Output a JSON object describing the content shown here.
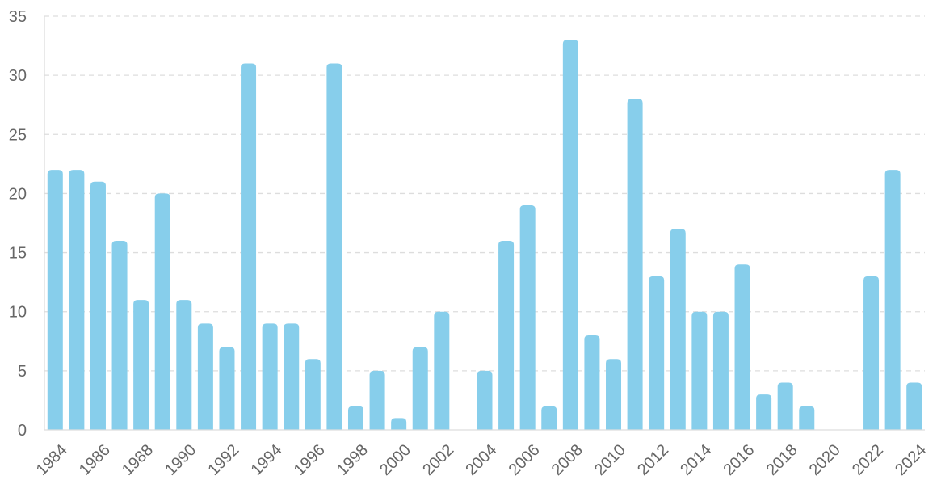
{
  "chart_data": {
    "type": "bar",
    "title": "",
    "xlabel": "",
    "ylabel": "",
    "ylim": [
      0,
      35
    ],
    "yticks": [
      0,
      5,
      10,
      15,
      20,
      25,
      30,
      35
    ],
    "grid": true,
    "bar_color": "#87ceeb",
    "categories": [
      "1984",
      "1985",
      "1986",
      "1987",
      "1988",
      "1989",
      "1990",
      "1991",
      "1992",
      "1993",
      "1994",
      "1995",
      "1996",
      "1997",
      "1998",
      "1999",
      "2000",
      "2001",
      "2002",
      "2003",
      "2004",
      "2005",
      "2006",
      "2007",
      "2008",
      "2009",
      "2010",
      "2011",
      "2012",
      "2013",
      "2014",
      "2015",
      "2016",
      "2017",
      "2018",
      "2019",
      "2020",
      "2021",
      "2022",
      "2023",
      "2024"
    ],
    "values": [
      22,
      22,
      21,
      16,
      11,
      20,
      11,
      9,
      7,
      31,
      9,
      9,
      6,
      31,
      2,
      5,
      1,
      7,
      10,
      0,
      5,
      16,
      19,
      2,
      33,
      8,
      6,
      28,
      13,
      17,
      10,
      10,
      14,
      3,
      4,
      2,
      0,
      0,
      13,
      22,
      4
    ],
    "x_tick_labels": [
      "1984",
      "1986",
      "1988",
      "1990",
      "1992",
      "1994",
      "1996",
      "1998",
      "2000",
      "2002",
      "2004",
      "2006",
      "2008",
      "2010",
      "2012",
      "2014",
      "2016",
      "2018",
      "2020",
      "2022",
      "2024"
    ]
  }
}
